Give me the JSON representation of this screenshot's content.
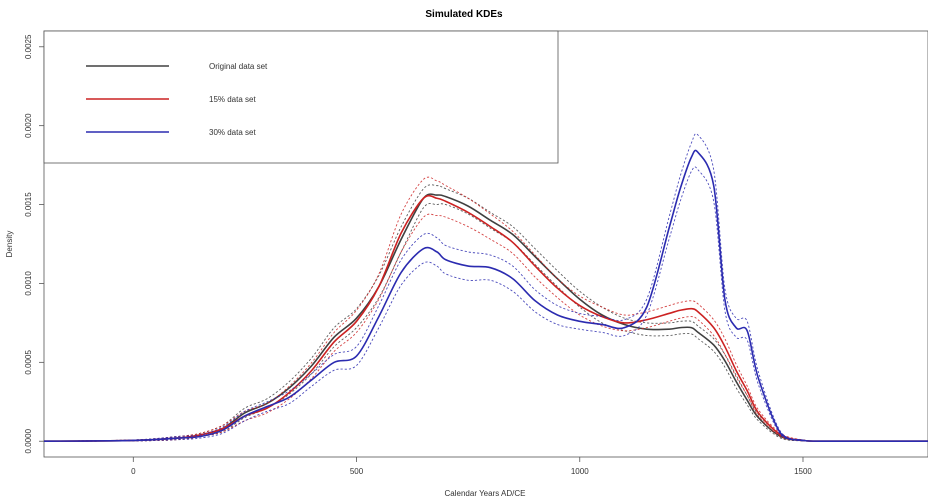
{
  "chart_data": {
    "type": "line",
    "title": "Simulated KDEs",
    "xlabel": "Calendar Years AD/CE",
    "ylabel": "Density",
    "xlim": [
      -200,
      1780
    ],
    "ylim": [
      -0.0001,
      0.0026
    ],
    "x_ticks": [
      0,
      500,
      1000,
      1500
    ],
    "x_tick_labels": [
      "0",
      "500",
      "1000",
      "1500"
    ],
    "y_ticks": [
      0.0,
      0.0005,
      0.001,
      0.0015,
      0.002,
      0.0025
    ],
    "y_tick_labels": [
      "0.0000",
      "0.0005",
      "0.0010",
      "0.0015",
      "0.0020",
      "0.0025"
    ],
    "legend_position": "top-left",
    "grid": false,
    "x": [
      -200,
      0,
      100,
      150,
      200,
      250,
      300,
      350,
      400,
      450,
      500,
      550,
      600,
      650,
      680,
      700,
      750,
      800,
      850,
      900,
      950,
      1000,
      1050,
      1100,
      1150,
      1200,
      1225,
      1250,
      1265,
      1300,
      1325,
      1350,
      1375,
      1400,
      1450,
      1500,
      1550,
      1780
    ],
    "series": [
      {
        "name": "Original data set",
        "color": "#404040",
        "values": [
          0,
          5e-06,
          2e-05,
          4e-05,
          8e-05,
          0.00018,
          0.00024,
          0.00034,
          0.00048,
          0.00066,
          0.00078,
          0.00098,
          0.00128,
          0.00154,
          0.00156,
          0.00155,
          0.00149,
          0.0014,
          0.00131,
          0.00117,
          0.00103,
          0.0009,
          0.0008,
          0.00074,
          0.00071,
          0.00071,
          0.00072,
          0.00072,
          0.00069,
          0.00061,
          0.00051,
          0.00038,
          0.00026,
          0.00015,
          3e-05,
          5e-06,
          0,
          0
        ],
        "upper": [
          0,
          8e-06,
          3e-05,
          5e-05,
          0.0001,
          0.00021,
          0.00027,
          0.00038,
          0.00053,
          0.00072,
          0.00084,
          0.00105,
          0.00136,
          0.0016,
          0.00162,
          0.0016,
          0.00154,
          0.00145,
          0.00136,
          0.00122,
          0.00108,
          0.00095,
          0.00085,
          0.00078,
          0.00075,
          0.00075,
          0.00076,
          0.00076,
          0.00073,
          0.00065,
          0.00055,
          0.00042,
          0.00029,
          0.00017,
          4e-05,
          8e-06,
          0,
          0
        ],
        "lower": [
          0,
          2e-06,
          1e-05,
          3e-05,
          6e-05,
          0.00015,
          0.00021,
          0.0003,
          0.00043,
          0.0006,
          0.00072,
          0.00091,
          0.0012,
          0.00148,
          0.0015,
          0.0015,
          0.00144,
          0.00135,
          0.00126,
          0.00112,
          0.00098,
          0.00085,
          0.00075,
          0.0007,
          0.00067,
          0.00067,
          0.00068,
          0.00068,
          0.00065,
          0.00057,
          0.00047,
          0.00034,
          0.00023,
          0.00013,
          2e-05,
          2e-06,
          0,
          0
        ]
      },
      {
        "name": "15% data set",
        "color": "#cc2222",
        "values": [
          0,
          5e-06,
          2e-05,
          4e-05,
          8e-05,
          0.00016,
          0.00021,
          0.00031,
          0.00045,
          0.00063,
          0.00076,
          0.00098,
          0.00132,
          0.00154,
          0.00154,
          0.00152,
          0.00145,
          0.00136,
          0.00126,
          0.00111,
          0.00097,
          0.00086,
          0.00079,
          0.00075,
          0.00077,
          0.00081,
          0.00083,
          0.00084,
          0.00082,
          0.00072,
          0.0006,
          0.00045,
          0.00032,
          0.00018,
          4e-05,
          5e-06,
          0,
          0
        ],
        "upper": [
          0,
          8e-06,
          3e-05,
          5e-05,
          0.0001,
          0.00019,
          0.00024,
          0.00035,
          0.0005,
          0.00069,
          0.00083,
          0.00106,
          0.00144,
          0.00166,
          0.00165,
          0.00162,
          0.00154,
          0.00144,
          0.00133,
          0.00118,
          0.00103,
          0.00092,
          0.00085,
          0.0008,
          0.00082,
          0.00086,
          0.00088,
          0.00089,
          0.00087,
          0.00077,
          0.00065,
          0.00049,
          0.00035,
          0.0002,
          5e-05,
          8e-06,
          0,
          0
        ],
        "lower": [
          0,
          2e-06,
          1e-05,
          3e-05,
          6e-05,
          0.00013,
          0.00018,
          0.00027,
          0.0004,
          0.00057,
          0.00069,
          0.0009,
          0.0012,
          0.00142,
          0.00143,
          0.00142,
          0.00136,
          0.00128,
          0.00119,
          0.00104,
          0.00091,
          0.0008,
          0.00073,
          0.0007,
          0.00072,
          0.00076,
          0.00078,
          0.00079,
          0.00077,
          0.00067,
          0.00055,
          0.00041,
          0.00029,
          0.00016,
          3e-05,
          2e-06,
          0,
          0
        ]
      },
      {
        "name": "30% data set",
        "color": "#2b2bb0",
        "values": [
          0,
          5e-06,
          2e-05,
          3e-05,
          7e-05,
          0.00016,
          0.00022,
          0.00028,
          0.00039,
          0.0005,
          0.00054,
          0.00079,
          0.00107,
          0.00122,
          0.0012,
          0.00115,
          0.00111,
          0.0011,
          0.00103,
          0.00089,
          0.0008,
          0.00076,
          0.00074,
          0.00072,
          0.00085,
          0.00135,
          0.0016,
          0.0018,
          0.00183,
          0.00162,
          0.0009,
          0.00072,
          0.0007,
          0.0004,
          5e-05,
          5e-06,
          0,
          0
        ],
        "upper": [
          0,
          8e-06,
          3e-05,
          4e-05,
          9e-05,
          0.00019,
          0.00025,
          0.00032,
          0.00043,
          0.00055,
          0.0006,
          0.00086,
          0.00115,
          0.00131,
          0.00129,
          0.00124,
          0.0012,
          0.00118,
          0.00111,
          0.00096,
          0.00086,
          0.00081,
          0.00079,
          0.00077,
          0.0009,
          0.00142,
          0.00168,
          0.00189,
          0.00194,
          0.00172,
          0.00097,
          0.00078,
          0.00076,
          0.00044,
          6e-05,
          8e-06,
          0,
          0
        ],
        "lower": [
          0,
          2e-06,
          1e-05,
          2e-05,
          5e-05,
          0.00013,
          0.00019,
          0.00024,
          0.00035,
          0.00045,
          0.00048,
          0.00072,
          0.00099,
          0.00113,
          0.00111,
          0.00106,
          0.00102,
          0.00102,
          0.00095,
          0.00082,
          0.00074,
          0.00071,
          0.00069,
          0.00067,
          0.0008,
          0.00128,
          0.00152,
          0.00171,
          0.00172,
          0.00152,
          0.00083,
          0.00066,
          0.00064,
          0.00036,
          4e-05,
          2e-06,
          0,
          0
        ]
      }
    ]
  }
}
